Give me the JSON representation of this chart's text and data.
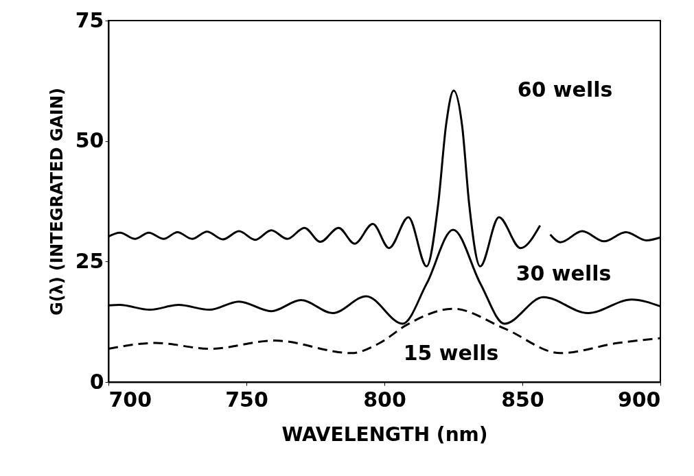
{
  "chart_data": {
    "type": "line",
    "xlabel": "WAVELENGTH (nm)",
    "ylabel": "G(λ) (INTEGRATED GAIN)",
    "xlim": [
      700,
      900
    ],
    "xticks": [
      700,
      750,
      800,
      850,
      900
    ],
    "ylim": [
      0,
      75
    ],
    "yticks": [
      0,
      25,
      50,
      75
    ],
    "grid": false,
    "legend": false,
    "marker": "none",
    "series": [
      {
        "name": "60 wells",
        "color": "#000000",
        "line_style": "solid",
        "x": [
          700,
          704.2,
          709.6,
          714.6,
          720,
          725,
          730.3,
          735.7,
          741.5,
          747.3,
          753.2,
          759,
          764.8,
          771,
          776.8,
          783.4,
          789.2,
          795.8,
          801.7,
          808.7,
          815.3,
          819.5,
          822.4,
          825.1,
          828.2,
          830.7,
          834.7,
          841.5,
          849.3,
          856.4,
          858,
          860.1,
          863.8,
          871.7,
          879.6,
          887.5,
          895,
          900
        ],
        "values": [
          30.2,
          31.0,
          29.7,
          31.0,
          29.7,
          31.1,
          29.7,
          31.2,
          29.6,
          31.3,
          29.5,
          31.5,
          29.7,
          32.0,
          29.1,
          32.0,
          28.7,
          32.8,
          27.8,
          34.2,
          24.0,
          37,
          53.6,
          60.5,
          53.0,
          37,
          24.0,
          34.2,
          27.8,
          32.5,
          null,
          30.6,
          29.0,
          31.3,
          29.2,
          31.1,
          29.4,
          30.0
        ]
      },
      {
        "name": "30 wells",
        "color": "#000000",
        "line_style": "solid",
        "x": [
          700,
          704,
          715,
          725.4,
          736.6,
          747.3,
          759,
          769.8,
          781.3,
          793.4,
          806.6,
          815.3,
          824.9,
          834.8,
          843.5,
          857.6,
          873.8,
          889.6,
          900
        ],
        "values": [
          15.9,
          16.0,
          15.0,
          16.0,
          15.0,
          16.7,
          14.7,
          17.0,
          14.3,
          17.8,
          12.1,
          20.4,
          31.6,
          20.4,
          12.1,
          17.6,
          14.3,
          17.1,
          15.7
        ]
      },
      {
        "name": "15 wells",
        "color": "#000000",
        "line_style": "dashed",
        "x": [
          700,
          717.1,
          737,
          760.2,
          788,
          798,
          808.2,
          824.9,
          843.9,
          863.8,
          884.6,
          900
        ],
        "values": [
          6.9,
          8.1,
          6.9,
          8.6,
          6.0,
          8.0,
          11.9,
          15.2,
          11.0,
          6.0,
          8.1,
          9.1
        ]
      }
    ]
  }
}
